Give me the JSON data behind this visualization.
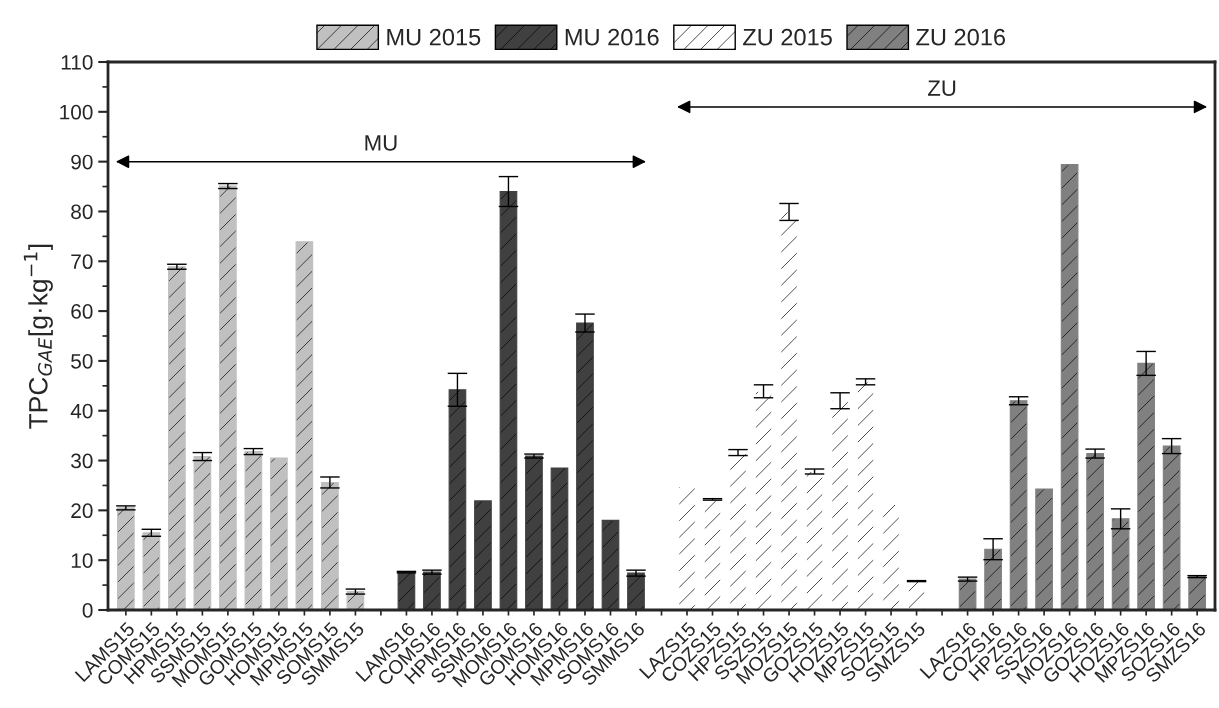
{
  "chart_data": {
    "type": "bar",
    "ylabel": "TPC$_{GAE}$[g·kg$^{−1}$]",
    "categories": [
      "LAMS15",
      "COMS15",
      "HPMS15",
      "SSMS15",
      "MOMS15",
      "GOMS15",
      "HOMS15",
      "MPMS15",
      "SOMS15",
      "SMMS15",
      null,
      "LAMS16",
      "COMS16",
      "HPMS16",
      "SSMS16",
      "MOMS16",
      "GOMS16",
      "HOMS16",
      "MPMS16",
      "SOMS16",
      "SMMS16",
      null,
      "LAZS15",
      "COZS15",
      "HPZS15",
      "SSZS15",
      "MOZS15",
      "GOZS15",
      "HOZS15",
      "MPZS15",
      "SOZS15",
      "SMZS15",
      null,
      "LAZS16",
      "COZS16",
      "HPZS16",
      "SSZS16",
      "MOZS16",
      "GOZS16",
      "HOZS16",
      "MPZS16",
      "SOZS16",
      "SMZS16"
    ],
    "series": [
      {
        "name": "MU 2015",
        "color": "#c0c0c0",
        "values": [
          20.5,
          15.5,
          68.9,
          30.8,
          85.1,
          31.8,
          30.5,
          73.9,
          25.6,
          3.7,
          null,
          null,
          null,
          null,
          null,
          null,
          null,
          null,
          null,
          null,
          null,
          null,
          null,
          null,
          null,
          null,
          null,
          null,
          null,
          null,
          null,
          null,
          null,
          null,
          null,
          null,
          null,
          null,
          null,
          null,
          null,
          null,
          null
        ],
        "errors": [
          0.4,
          0.7,
          0.5,
          0.8,
          0.5,
          0.6,
          null,
          null,
          1.1,
          0.5,
          null,
          null,
          null,
          null,
          null,
          null,
          null,
          null,
          null,
          null,
          null,
          null,
          null,
          null,
          null,
          null,
          null,
          null,
          null,
          null,
          null,
          null,
          null,
          null,
          null,
          null,
          null,
          null,
          null,
          null,
          null,
          null,
          null
        ]
      },
      {
        "name": "MU 2016",
        "color": "#404040",
        "values": [
          null,
          null,
          null,
          null,
          null,
          null,
          null,
          null,
          null,
          null,
          null,
          7.6,
          7.6,
          44.2,
          21.9,
          84.0,
          30.9,
          28.5,
          57.6,
          18.0,
          7.4,
          null,
          null,
          null,
          null,
          null,
          null,
          null,
          null,
          null,
          null,
          null,
          null,
          null,
          null,
          null,
          null,
          null,
          null,
          null,
          null,
          null,
          null
        ],
        "errors": [
          null,
          null,
          null,
          null,
          null,
          null,
          null,
          null,
          null,
          null,
          null,
          0.15,
          0.4,
          3.3,
          null,
          3.0,
          0.4,
          null,
          1.8,
          null,
          0.6,
          null,
          null,
          null,
          null,
          null,
          null,
          null,
          null,
          null,
          null,
          null,
          null,
          null,
          null,
          null,
          null,
          null,
          null,
          null,
          null,
          null,
          null
        ]
      },
      {
        "name": "ZU 2015",
        "color": "#ffffff",
        "values": [
          null,
          null,
          null,
          null,
          null,
          null,
          null,
          null,
          null,
          null,
          null,
          null,
          null,
          null,
          null,
          null,
          null,
          null,
          null,
          null,
          null,
          null,
          24.8,
          22.2,
          31.6,
          43.9,
          79.9,
          27.8,
          42.0,
          45.8,
          21.2,
          5.8,
          null,
          null,
          null,
          null,
          null,
          null,
          null,
          null,
          null,
          null,
          null
        ],
        "errors": [
          null,
          null,
          null,
          null,
          null,
          null,
          null,
          null,
          null,
          null,
          null,
          null,
          null,
          null,
          null,
          null,
          null,
          null,
          null,
          null,
          null,
          null,
          null,
          0.15,
          0.6,
          1.3,
          1.7,
          0.5,
          1.6,
          0.6,
          null,
          0.1,
          null,
          null,
          null,
          null,
          null,
          null,
          null,
          null,
          null,
          null,
          null
        ]
      },
      {
        "name": "ZU 2016",
        "color": "#808080",
        "values": [
          null,
          null,
          null,
          null,
          null,
          null,
          null,
          null,
          null,
          null,
          null,
          null,
          null,
          null,
          null,
          null,
          null,
          null,
          null,
          null,
          null,
          null,
          null,
          null,
          null,
          null,
          null,
          null,
          null,
          null,
          null,
          null,
          null,
          6.2,
          12.2,
          42.0,
          24.3,
          89.4,
          31.4,
          18.3,
          49.5,
          32.9,
          6.7
        ],
        "errors": [
          null,
          null,
          null,
          null,
          null,
          null,
          null,
          null,
          null,
          null,
          null,
          null,
          null,
          null,
          null,
          null,
          null,
          null,
          null,
          null,
          null,
          null,
          null,
          null,
          null,
          null,
          null,
          null,
          null,
          null,
          null,
          null,
          null,
          0.4,
          2.1,
          0.8,
          null,
          null,
          0.9,
          2.0,
          2.4,
          1.5,
          0.2
        ]
      }
    ],
    "annotations": [
      "MU",
      "ZU"
    ],
    "ylim": [
      0,
      110
    ],
    "yticks": [
      0,
      10,
      20,
      30,
      40,
      50,
      60,
      70,
      80,
      90,
      100,
      110
    ],
    "legend": "top"
  }
}
